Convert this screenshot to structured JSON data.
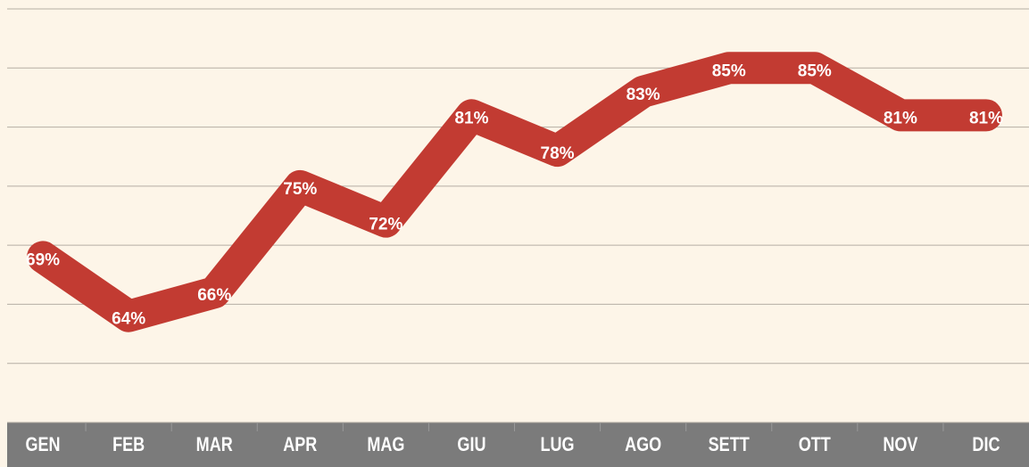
{
  "chart_data": {
    "type": "line",
    "categories": [
      "GEN",
      "FEB",
      "MAR",
      "APR",
      "MAG",
      "GIU",
      "LUG",
      "AGO",
      "SETT",
      "OTT",
      "NOV",
      "DIC"
    ],
    "series": [
      {
        "color": "#c23b32",
        "values": [
          69,
          64,
          66,
          75,
          72,
          81,
          78,
          83,
          85,
          85,
          81,
          81
        ],
        "value_labels": [
          "69%",
          "64%",
          "66%",
          "75%",
          "72%",
          "81%",
          "78%",
          "83%",
          "85%",
          "85%",
          "81%",
          "81%"
        ]
      }
    ],
    "ylim": [
      55,
      90
    ],
    "yticks": [
      55,
      60,
      65,
      70,
      75,
      80,
      85,
      90
    ],
    "grid": true
  }
}
